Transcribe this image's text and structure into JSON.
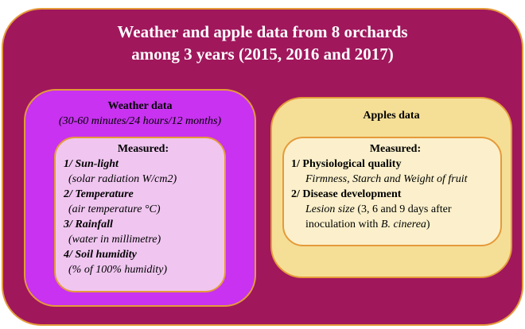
{
  "header": {
    "title_lines": [
      "Weather and apple data from 8 orchards",
      "among 3 years (2015, 2016 and 2017)"
    ]
  },
  "weather": {
    "title": "Weather data",
    "subtitle": "(30-60 minutes/24 hours/12 months)",
    "measured": "Measured:",
    "items": [
      {
        "heading": "1/ Sun-light",
        "detail": "(solar radiation W/cm2)"
      },
      {
        "heading": "2/ Temperature",
        "detail": "(air temperature °C)"
      },
      {
        "heading": "3/ Rainfall",
        "detail": "(water in millimetre)"
      },
      {
        "heading": "4/ Soil humidity",
        "detail": "(% of 100% humidity)"
      }
    ]
  },
  "apples": {
    "title": "Apples data",
    "measured": "Measured:",
    "items": [
      {
        "heading": "1/ Physiological quality",
        "detail_parts": [
          "Firmness, Starch and Weight of fruit"
        ]
      },
      {
        "heading": "2/ Disease development",
        "detail_parts": [
          "Lesion size",
          "(3, 6 and 9 days after",
          "inoculation with",
          "B. cinerea",
          ")"
        ]
      }
    ]
  }
}
